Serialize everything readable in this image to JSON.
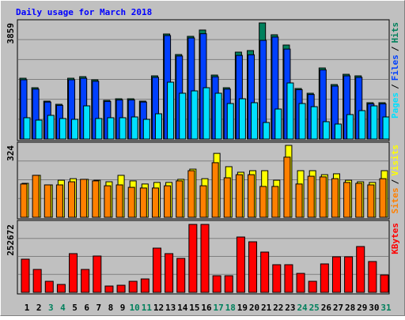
{
  "chart_data": [
    {
      "type": "bar",
      "title": "Daily usage for March 2018",
      "ylim": [
        0,
        3859
      ],
      "yticks": [
        3859
      ],
      "legend_separator": "/",
      "series": [
        {
          "name": "Hits",
          "color": "#00805c",
          "values": [
            2021,
            1706,
            1260,
            1155,
            2021,
            2074,
            1969,
            1286,
            1339,
            1339,
            1260,
            2100,
            3491,
            2809,
            3413,
            3623,
            2126,
            1706,
            2888,
            2940,
            3859,
            3465,
            3124,
            1680,
            1522,
            2362,
            1811,
            2152,
            2100,
            1208,
            1208
          ]
        },
        {
          "name": "Files",
          "color": "#0040ff",
          "values": [
            1970,
            1660,
            1230,
            1120,
            1970,
            2020,
            1920,
            1250,
            1300,
            1300,
            1230,
            2050,
            3440,
            2760,
            3360,
            3500,
            2070,
            1660,
            2780,
            2800,
            3280,
            3390,
            2990,
            1640,
            1480,
            2300,
            1760,
            2100,
            2050,
            1170,
            1170
          ]
        },
        {
          "name": "Pages",
          "color": "#00e0ff",
          "values": [
            709,
            630,
            788,
            683,
            656,
            1103,
            683,
            709,
            709,
            735,
            656,
            840,
            1890,
            1523,
            1601,
            1706,
            1523,
            1181,
            1339,
            1208,
            551,
            998,
            1864,
            1181,
            1076,
            578,
            499,
            814,
            945,
            1103,
            735
          ]
        }
      ]
    },
    {
      "type": "bar",
      "ylim": [
        0,
        324
      ],
      "yticks": [
        324
      ],
      "legend_separator": "/",
      "series": [
        {
          "name": "Visits",
          "color": "#ffff00",
          "values": [
            153,
            189,
            146,
            167,
            174,
            171,
            167,
            160,
            189,
            164,
            150,
            157,
            157,
            171,
            217,
            174,
            288,
            228,
            203,
            210,
            210,
            167,
            324,
            210,
            210,
            192,
            196,
            167,
            160,
            157,
            210
          ]
        },
        {
          "name": "Sites",
          "color": "#ff8000",
          "values": [
            150,
            189,
            146,
            146,
            160,
            171,
            164,
            142,
            146,
            135,
            132,
            132,
            142,
            164,
            210,
            142,
            246,
            178,
            192,
            192,
            139,
            139,
            271,
            150,
            185,
            182,
            174,
            157,
            153,
            146,
            174
          ]
        }
      ]
    },
    {
      "type": "bar",
      "ylim": [
        0,
        252672
      ],
      "yticks": [
        252672
      ],
      "categories": [
        "1",
        "2",
        "3",
        "4",
        "5",
        "6",
        "7",
        "8",
        "9",
        "10",
        "11",
        "12",
        "13",
        "14",
        "15",
        "16",
        "17",
        "18",
        "19",
        "20",
        "21",
        "22",
        "23",
        "24",
        "25",
        "26",
        "27",
        "28",
        "29",
        "30",
        "31"
      ],
      "category_colors": [
        "#000000",
        "#000000",
        "#00805c",
        "#00805c",
        "#000000",
        "#000000",
        "#000000",
        "#000000",
        "#000000",
        "#00805c",
        "#00805c",
        "#000000",
        "#000000",
        "#000000",
        "#000000",
        "#000000",
        "#00805c",
        "#00805c",
        "#000000",
        "#000000",
        "#000000",
        "#000000",
        "#000000",
        "#00805c",
        "#00805c",
        "#000000",
        "#000000",
        "#000000",
        "#000000",
        "#000000",
        "#00805c"
      ],
      "series": [
        {
          "name": "KBytes",
          "color": "#ff0000",
          "values": [
            123400,
            85200,
            41100,
            29400,
            144000,
            85200,
            135100,
            23500,
            26400,
            41100,
            49900,
            164500,
            144000,
            126300,
            252672,
            252672,
            61700,
            61700,
            205700,
            188000,
            149800,
            102800,
            102800,
            70500,
            41100,
            105800,
            132200,
            132200,
            170400,
            114600,
            64600
          ]
        }
      ]
    }
  ]
}
